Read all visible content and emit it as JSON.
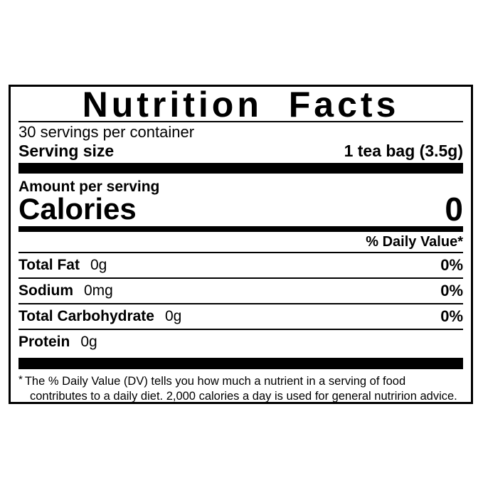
{
  "label": {
    "title": "Nutrition Facts",
    "servings_per_container": "30 servings per container",
    "serving_size": {
      "label": "Serving size",
      "value": "1 tea bag (3.5g)"
    },
    "amount_per_serving": "Amount per serving",
    "calories": {
      "label": "Calories",
      "value": "0"
    },
    "daily_value_header": "% Daily Value*",
    "nutrients": [
      {
        "name": "Total Fat",
        "amount": "0g",
        "dv": "0%"
      },
      {
        "name": "Sodium",
        "amount": "0mg",
        "dv": "0%"
      },
      {
        "name": "Total Carbohydrate",
        "amount": "0g",
        "dv": "0%"
      },
      {
        "name": "Protein",
        "amount": "0g",
        "dv": ""
      }
    ],
    "footnote": {
      "asterisk": "*",
      "text": "The % Daily Value (DV) tells you how much a nutrient in a serving of food contributes to a daily diet. 2,000 calories a day is used for general nutririon advice."
    },
    "colors": {
      "ink": "#000000",
      "background": "#ffffff"
    }
  }
}
